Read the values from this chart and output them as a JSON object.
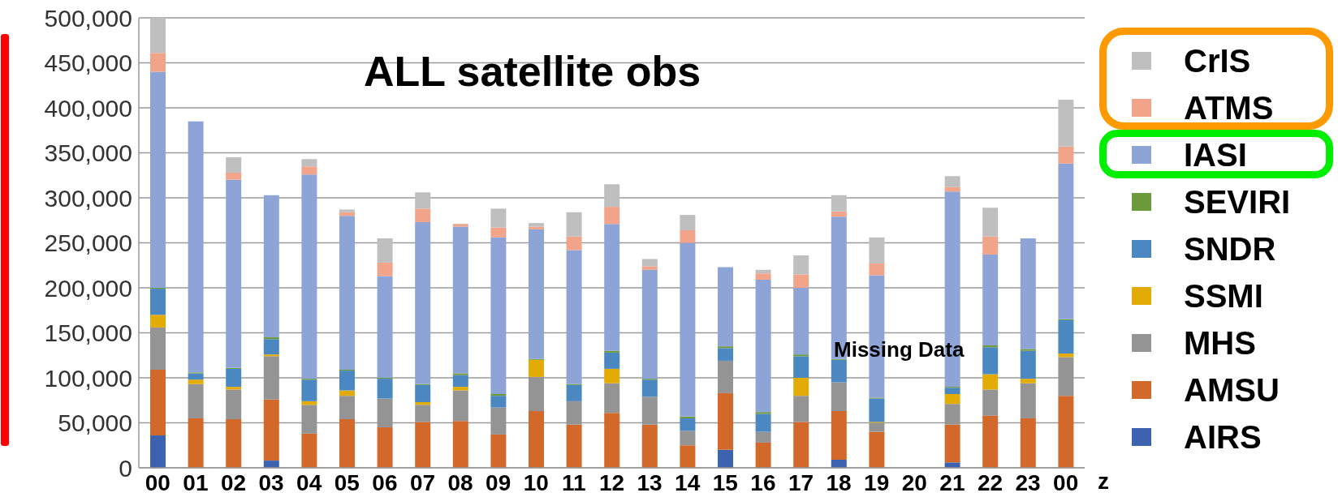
{
  "chart_data": {
    "type": "bar",
    "title": "ALL satellite obs",
    "xlabel": "z",
    "categories": [
      "00",
      "01",
      "02",
      "03",
      "04",
      "05",
      "06",
      "07",
      "08",
      "09",
      "10",
      "11",
      "12",
      "13",
      "14",
      "15",
      "16",
      "17",
      "18",
      "19",
      "20",
      "21",
      "22",
      "23",
      "00"
    ],
    "stacked": true,
    "ylim": [
      0,
      500000
    ],
    "yticks": [
      0,
      {
        "value": 50000,
        "label": "50,000"
      },
      {
        "value": 100000,
        "label": "100,000"
      },
      {
        "value": 150000,
        "label": "150,000"
      },
      {
        "value": 200000,
        "label": "200,000"
      },
      {
        "value": 250000,
        "label": "250,000"
      },
      {
        "value": 300000,
        "label": "300,000"
      },
      {
        "value": 350000,
        "label": "350,000"
      },
      {
        "value": 400000,
        "label": "400,000"
      },
      {
        "value": 450000,
        "label": "450,000"
      },
      {
        "value": 500000,
        "label": "500,000"
      }
    ],
    "grid": "y",
    "legend": "right",
    "annotations": [
      "Missing Data"
    ],
    "series": [
      {
        "name": "AIRS",
        "color": "#3d62b0",
        "values": [
          36000,
          0,
          0,
          8000,
          0,
          0,
          0,
          0,
          0,
          0,
          0,
          0,
          0,
          0,
          0,
          20000,
          0,
          0,
          9000,
          0,
          null,
          6000,
          0,
          0,
          0
        ]
      },
      {
        "name": "AMSU",
        "color": "#d2692b",
        "values": [
          73000,
          55000,
          54000,
          68000,
          38000,
          54000,
          45000,
          51000,
          52000,
          37000,
          63000,
          48000,
          61000,
          48000,
          25000,
          63000,
          28000,
          51000,
          54000,
          40000,
          null,
          42000,
          58000,
          55000,
          80000
        ]
      },
      {
        "name": "MHS",
        "color": "#949494",
        "values": [
          47000,
          38000,
          33000,
          48000,
          32000,
          26000,
          32000,
          19000,
          34000,
          30000,
          38000,
          26000,
          33000,
          31000,
          16000,
          36000,
          12000,
          29000,
          32000,
          10000,
          null,
          23000,
          29000,
          39000,
          43000
        ]
      },
      {
        "name": "SSMI",
        "color": "#e2ab06",
        "values": [
          14000,
          5000,
          3000,
          2000,
          4000,
          6000,
          0,
          3000,
          4000,
          0,
          19000,
          0,
          16000,
          0,
          0,
          0,
          0,
          20000,
          0,
          1000,
          null,
          11000,
          17000,
          5000,
          4000
        ]
      },
      {
        "name": "SNDR",
        "color": "#4b87c1",
        "values": [
          29000,
          7000,
          20000,
          17000,
          24000,
          22000,
          22000,
          19000,
          13000,
          13000,
          0,
          18000,
          18000,
          19000,
          14000,
          14000,
          20000,
          24000,
          25000,
          26000,
          null,
          7000,
          30000,
          31000,
          37000
        ]
      },
      {
        "name": "SEVIRI",
        "color": "#6c9b3b",
        "values": [
          1000,
          1000,
          1000,
          2000,
          1000,
          1000,
          1000,
          1000,
          2000,
          2000,
          1000,
          1000,
          2000,
          1000,
          2000,
          2000,
          2000,
          2000,
          1000,
          1000,
          null,
          1000,
          2000,
          2000,
          1000
        ]
      },
      {
        "name": "IASI",
        "color": "#8ea3d6",
        "values": [
          240000,
          279000,
          209000,
          158000,
          227000,
          171000,
          113000,
          180000,
          163000,
          174000,
          144000,
          149000,
          141000,
          121000,
          193000,
          88000,
          147000,
          74000,
          158000,
          136000,
          null,
          217000,
          101000,
          123000,
          173000
        ]
      },
      {
        "name": "ATMS",
        "color": "#f1a48a",
        "values": [
          21000,
          0,
          8000,
          0,
          9000,
          4000,
          15000,
          15000,
          3000,
          11000,
          3000,
          15000,
          19000,
          4000,
          14000,
          0,
          7000,
          15000,
          6000,
          13000,
          null,
          5000,
          20000,
          0,
          19000
        ]
      },
      {
        "name": "CrIS",
        "color": "#bfbfbf",
        "values": [
          39000,
          0,
          17000,
          0,
          8000,
          3000,
          27000,
          18000,
          0,
          21000,
          4000,
          27000,
          25000,
          8000,
          17000,
          0,
          4000,
          21000,
          18000,
          29000,
          null,
          12000,
          32000,
          0,
          52000
        ]
      }
    ]
  }
}
